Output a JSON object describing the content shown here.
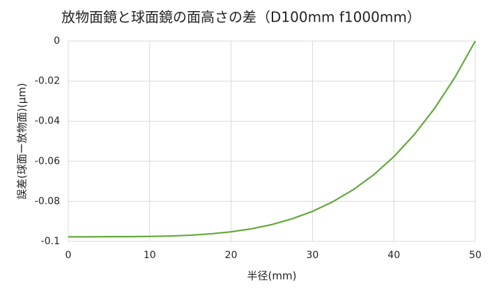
{
  "chart_data": {
    "type": "line",
    "title": "放物面鏡と球面鏡の面高さの差（D100mm f1000mm）",
    "x_label": "半径(mm)",
    "y_label": "誤差(球面ー放物面)(μm)",
    "x": [
      0,
      2.5,
      5,
      7.5,
      10,
      12.5,
      15,
      17.5,
      20,
      22.5,
      25,
      27.5,
      30,
      32.5,
      35,
      37.5,
      40,
      42.5,
      45,
      47.5,
      50
    ],
    "series": [
      {
        "color": "#62a83a",
        "values": [
          -0.0977,
          -0.0977,
          -0.0976,
          -0.0976,
          -0.0975,
          -0.0973,
          -0.0969,
          -0.0962,
          -0.0952,
          -0.0937,
          -0.0916,
          -0.0887,
          -0.085,
          -0.0802,
          -0.0742,
          -0.0668,
          -0.0577,
          -0.0467,
          -0.0336,
          -0.0181,
          0
        ]
      }
    ],
    "xlim": [
      0,
      50
    ],
    "xticks": [
      0,
      10,
      20,
      30,
      40,
      50
    ],
    "ylim": [
      -0.1,
      0
    ],
    "yticks": [
      0,
      -0.02,
      -0.04,
      -0.06,
      -0.08,
      -0.1
    ],
    "grid": true
  }
}
